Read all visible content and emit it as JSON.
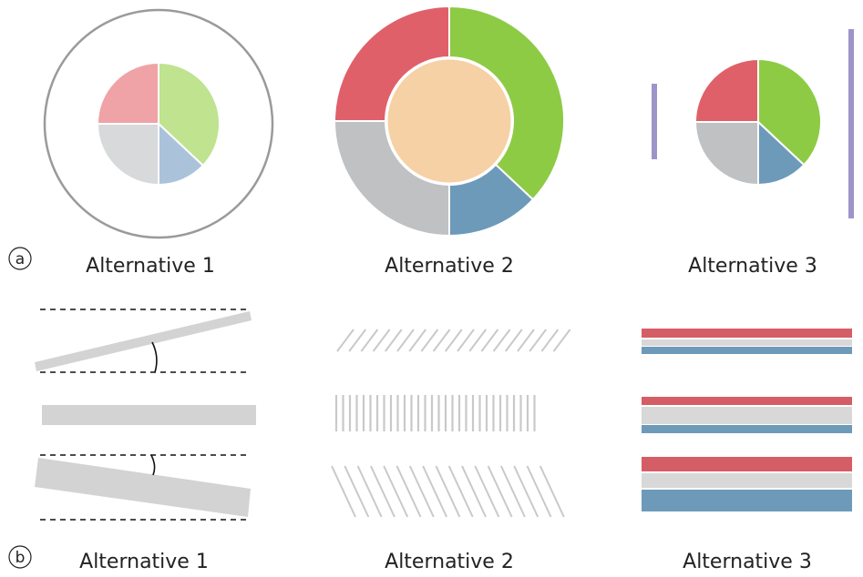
{
  "colors": {
    "green": "#8dcb45",
    "blue": "#6e9aba",
    "gray": "#bfc1c3",
    "red": "#e0606a",
    "peach": "#f6d1a5",
    "light_green": "#bfe38f",
    "light_blue": "#aac3da",
    "light_gray": "#d8d9da",
    "light_red": "#efa3a6",
    "bar_gray": "#d3d3d3",
    "lavender": "#9d95c9",
    "outline": "#999999"
  },
  "panel_a": {
    "label": "a",
    "pie_slice_fractions": [
      0.37,
      0.13,
      0.25,
      0.25
    ],
    "alternatives": [
      "Alternative 1",
      "Alternative 2",
      "Alternative 3"
    ]
  },
  "panel_b": {
    "label": "b",
    "alternatives": [
      "Alternative 1",
      "Alternative 2",
      "Alternative 3"
    ]
  }
}
